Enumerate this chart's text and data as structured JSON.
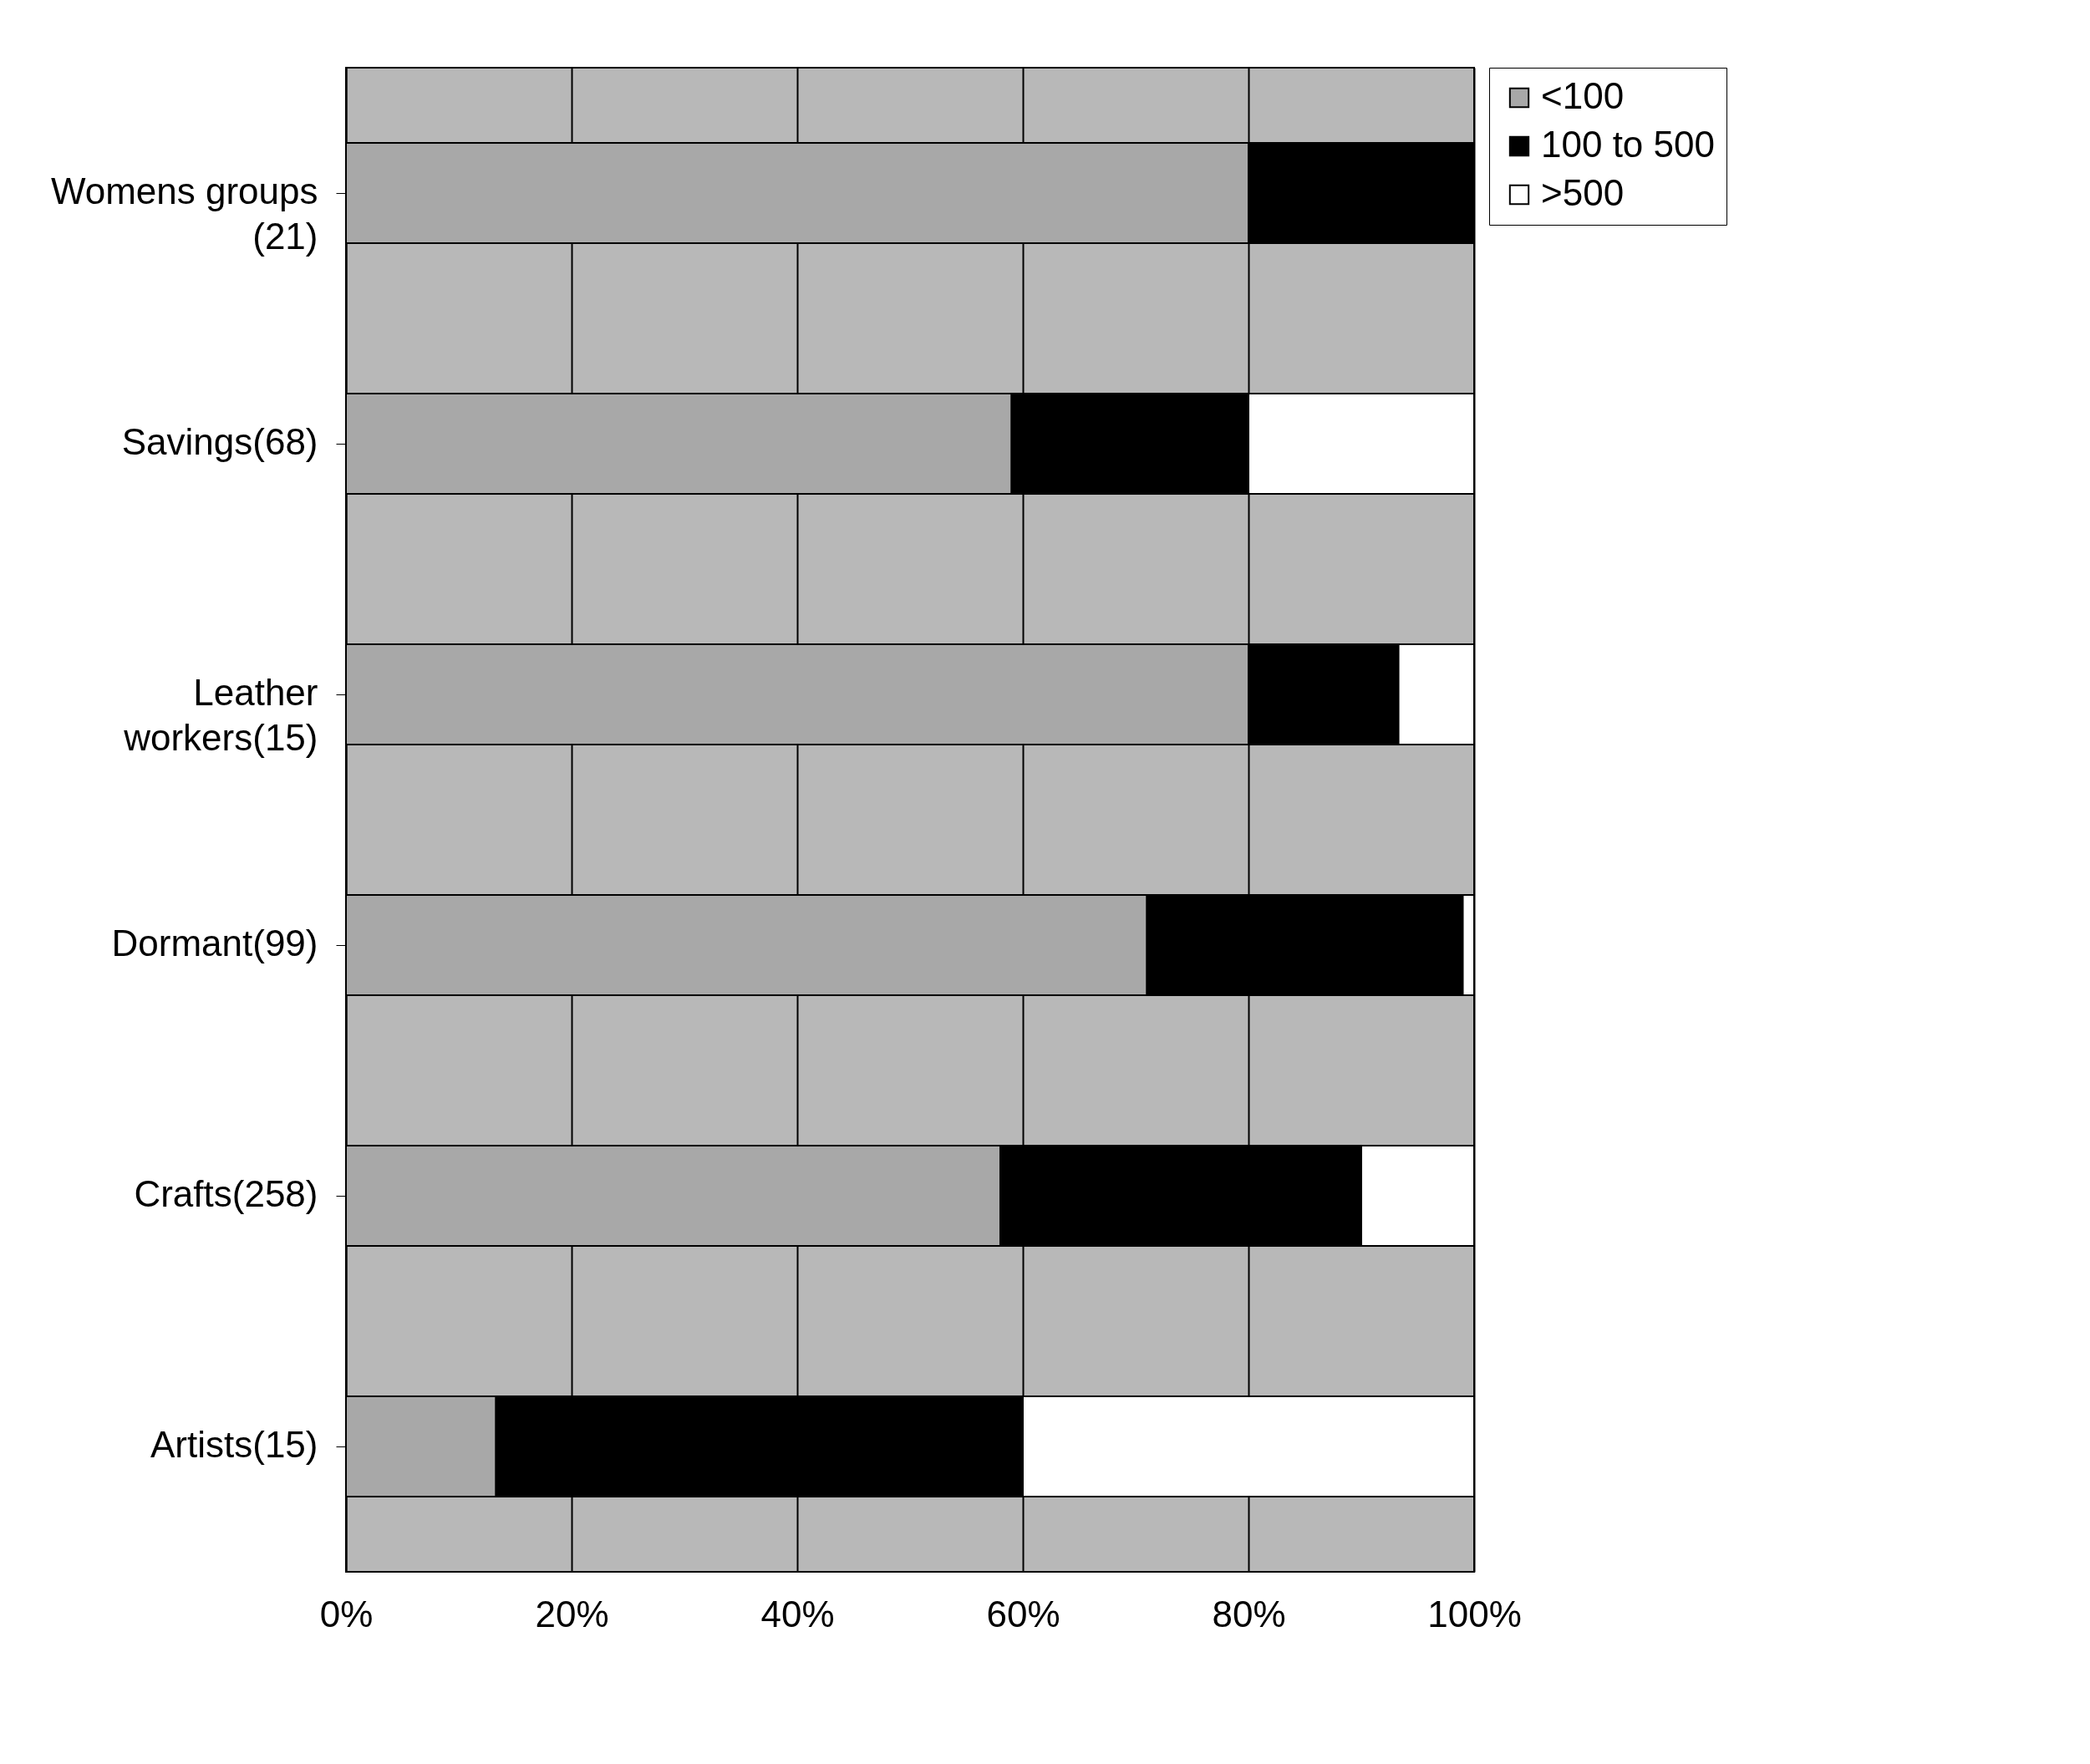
{
  "chart_data": {
    "type": "bar",
    "orientation": "horizontal",
    "stacked": true,
    "categories": [
      "Womens groups\n(21)",
      "Savings(68)",
      "Leather\nworkers(15)",
      "Dormant(99)",
      "Crafts(258)",
      "Artists(15)"
    ],
    "series": [
      {
        "name": "<100",
        "color": "#a8a8a8",
        "values": [
          80,
          59,
          80,
          71,
          58,
          13.3
        ]
      },
      {
        "name": "100 to 500",
        "color": "#000000",
        "values": [
          20,
          21,
          13.3,
          28,
          32,
          46.7
        ]
      },
      {
        "name": ">500",
        "color": "#ffffff",
        "values": [
          null,
          20,
          6.7,
          1,
          10,
          40
        ]
      }
    ],
    "xlim": [
      0,
      100
    ],
    "xticks": [
      {
        "value": 0,
        "label": "0%"
      },
      {
        "value": 20,
        "label": "20%"
      },
      {
        "value": 40,
        "label": "40%"
      },
      {
        "value": 60,
        "label": "60%"
      },
      {
        "value": 80,
        "label": "80%"
      },
      {
        "value": 100,
        "label": "100%"
      }
    ],
    "grid": "x",
    "legend": "right"
  }
}
